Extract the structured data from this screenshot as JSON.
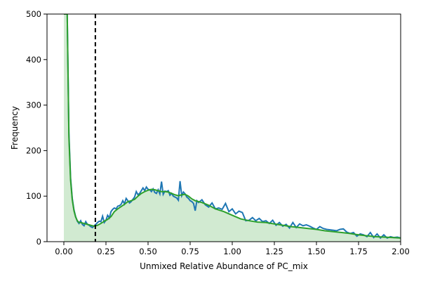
{
  "chart_data": {
    "type": "area",
    "title": "",
    "xlabel": "Unmixed Relative Abundance of PC_mix",
    "ylabel": "Frequency",
    "xlim": [
      -0.1,
      2.0
    ],
    "ylim": [
      0,
      500
    ],
    "grid": false,
    "x_ticks": [
      {
        "value": 0.0,
        "label": "0.00"
      },
      {
        "value": 0.25,
        "label": "0.25"
      },
      {
        "value": 0.5,
        "label": "0.50"
      },
      {
        "value": 0.75,
        "label": "0.75"
      },
      {
        "value": 1.0,
        "label": "1.00"
      },
      {
        "value": 1.25,
        "label": "1.25"
      },
      {
        "value": 1.5,
        "label": "1.50"
      },
      {
        "value": 1.75,
        "label": "1.75"
      },
      {
        "value": 2.0,
        "label": "2.00"
      }
    ],
    "y_ticks": [
      {
        "value": 0,
        "label": "0"
      },
      {
        "value": 100,
        "label": "100"
      },
      {
        "value": 200,
        "label": "200"
      },
      {
        "value": 300,
        "label": "300"
      },
      {
        "value": 400,
        "label": "400"
      },
      {
        "value": 500,
        "label": "500"
      }
    ],
    "threshold": 0.187,
    "colors": {
      "raw_line": "#1f77b4",
      "smooth_line": "#2ca02c",
      "fill": "#2ca02c",
      "threshold": "#000000"
    },
    "raw": {
      "x": [
        0.0,
        0.01,
        0.02,
        0.03,
        0.04,
        0.05,
        0.06,
        0.07,
        0.08,
        0.09,
        0.1,
        0.11,
        0.12,
        0.13,
        0.14,
        0.15,
        0.16,
        0.17,
        0.18,
        0.19,
        0.2,
        0.21,
        0.22,
        0.23,
        0.24,
        0.25,
        0.26,
        0.27,
        0.28,
        0.29,
        0.3,
        0.31,
        0.32,
        0.33,
        0.34,
        0.35,
        0.36,
        0.37,
        0.38,
        0.39,
        0.4,
        0.41,
        0.42,
        0.43,
        0.44,
        0.45,
        0.46,
        0.47,
        0.48,
        0.49,
        0.5,
        0.51,
        0.52,
        0.53,
        0.54,
        0.55,
        0.56,
        0.57,
        0.58,
        0.59,
        0.6,
        0.61,
        0.62,
        0.63,
        0.64,
        0.65,
        0.66,
        0.67,
        0.68,
        0.69,
        0.7,
        0.71,
        0.72,
        0.73,
        0.74,
        0.75,
        0.76,
        0.77,
        0.78,
        0.79,
        0.8,
        0.82,
        0.84,
        0.86,
        0.88,
        0.9,
        0.92,
        0.94,
        0.96,
        0.98,
        1.0,
        1.02,
        1.04,
        1.06,
        1.08,
        1.1,
        1.12,
        1.14,
        1.16,
        1.18,
        1.2,
        1.22,
        1.24,
        1.26,
        1.28,
        1.3,
        1.32,
        1.34,
        1.36,
        1.38,
        1.4,
        1.42,
        1.44,
        1.46,
        1.48,
        1.5,
        1.52,
        1.54,
        1.56,
        1.58,
        1.6,
        1.62,
        1.64,
        1.66,
        1.68,
        1.7,
        1.72,
        1.74,
        1.76,
        1.78,
        1.8,
        1.82,
        1.84,
        1.86,
        1.88,
        1.9,
        1.92,
        1.94,
        1.96,
        1.98,
        2.0
      ],
      "y": [
        500,
        500,
        500,
        240,
        140,
        95,
        70,
        55,
        45,
        40,
        46,
        38,
        35,
        44,
        38,
        36,
        33,
        31,
        35,
        38,
        42,
        45,
        44,
        56,
        42,
        47,
        58,
        52,
        66,
        71,
        74,
        72,
        78,
        79,
        82,
        90,
        83,
        95,
        90,
        85,
        88,
        93,
        98,
        110,
        103,
        106,
        112,
        118,
        112,
        120,
        115,
        114,
        110,
        116,
        108,
        106,
        114,
        105,
        132,
        104,
        111,
        110,
        112,
        102,
        106,
        100,
        98,
        96,
        91,
        133,
        101,
        109,
        105,
        98,
        95,
        90,
        88,
        84,
        68,
        90,
        86,
        92,
        81,
        76,
        85,
        72,
        74,
        71,
        84,
        66,
        72,
        61,
        67,
        64,
        46,
        47,
        53,
        46,
        51,
        44,
        46,
        40,
        47,
        36,
        42,
        34,
        38,
        30,
        42,
        31,
        39,
        35,
        37,
        34,
        30,
        27,
        33,
        29,
        27,
        26,
        25,
        24,
        27,
        28,
        21,
        18,
        20,
        12,
        17,
        15,
        11,
        20,
        9,
        17,
        8,
        15,
        8,
        11,
        9,
        10,
        8
      ],
      "name": ""
    },
    "smooth": {
      "x": [
        0.0,
        0.01,
        0.02,
        0.03,
        0.04,
        0.05,
        0.06,
        0.07,
        0.08,
        0.09,
        0.1,
        0.12,
        0.14,
        0.16,
        0.18,
        0.2,
        0.22,
        0.24,
        0.26,
        0.28,
        0.3,
        0.32,
        0.34,
        0.36,
        0.38,
        0.4,
        0.42,
        0.44,
        0.46,
        0.48,
        0.5,
        0.52,
        0.54,
        0.56,
        0.58,
        0.6,
        0.62,
        0.64,
        0.66,
        0.68,
        0.7,
        0.72,
        0.74,
        0.76,
        0.78,
        0.8,
        0.82,
        0.84,
        0.86,
        0.88,
        0.9,
        0.95,
        1.0,
        1.05,
        1.1,
        1.15,
        1.2,
        1.25,
        1.3,
        1.35,
        1.4,
        1.45,
        1.5,
        1.55,
        1.6,
        1.65,
        1.7,
        1.75,
        1.8,
        1.85,
        1.9,
        1.95,
        2.0
      ],
      "y": [
        500,
        500,
        500,
        230,
        135,
        92,
        68,
        54,
        46,
        42,
        42,
        40,
        38,
        36,
        34,
        36,
        40,
        45,
        49,
        55,
        66,
        72,
        77,
        82,
        88,
        90,
        93,
        100,
        106,
        110,
        113,
        115,
        114,
        112,
        110,
        110,
        109,
        106,
        103,
        101,
        103,
        104,
        100,
        94,
        90,
        88,
        86,
        83,
        80,
        76,
        72,
        66,
        58,
        50,
        46,
        43,
        42,
        39,
        36,
        33,
        31,
        29,
        27,
        24,
        22,
        20,
        18,
        15,
        13,
        11,
        10,
        9,
        8
      ],
      "name": ""
    }
  }
}
